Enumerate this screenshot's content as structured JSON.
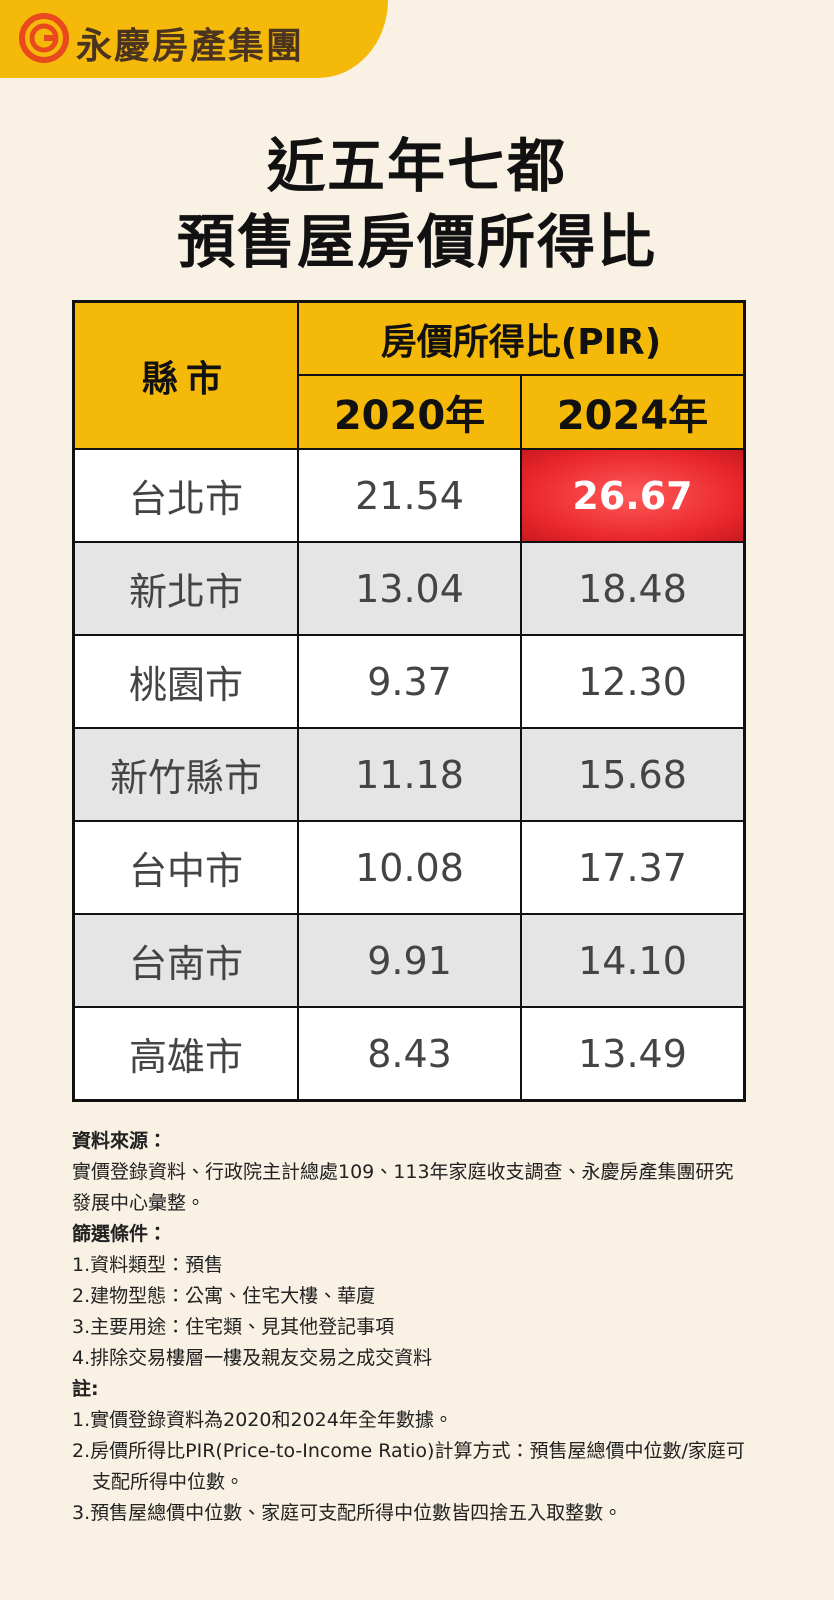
{
  "header": {
    "brand": "永慶房產集團"
  },
  "title": [
    "近五年七都",
    "預售屋房價所得比"
  ],
  "table": {
    "corner": "縣市",
    "group_header": "房價所得比(PIR)",
    "columns": [
      "2020年",
      "2024年"
    ],
    "rows": [
      [
        "台北市",
        "21.54",
        "26.67"
      ],
      [
        "新北市",
        "13.04",
        "18.48"
      ],
      [
        "桃園市",
        "9.37",
        "12.30"
      ],
      [
        "新竹縣市",
        "11.18",
        "15.68"
      ],
      [
        "台中市",
        "10.08",
        "17.37"
      ],
      [
        "台南市",
        "9.91",
        "14.10"
      ],
      [
        "高雄市",
        "8.43",
        "13.49"
      ]
    ]
  },
  "notes": {
    "source_label": "資料來源：",
    "source": "實價登錄資料、行政院主計總處109、113年家庭收支調查、永慶房產集團研究發展中心彙整。",
    "filter_label": "篩選條件：",
    "filters": [
      "1.資料類型：預售",
      "2.建物型態：公寓、住宅大樓、華廈",
      "3.主要用途：住宅類、見其他登記事項",
      "4.排除交易樓層一樓及親友交易之成交資料"
    ],
    "note_label": "註:",
    "notes": [
      "1.實價登錄資料為2020和2024年全年數據。",
      "2.房價所得比PIR(Price-to-Income Ratio)計算方式：預售屋總價中位數/家庭可支配所得中位數。",
      "3.預售屋總價中位數、家庭可支配所得中位數皆四捨五入取整數。"
    ]
  }
}
